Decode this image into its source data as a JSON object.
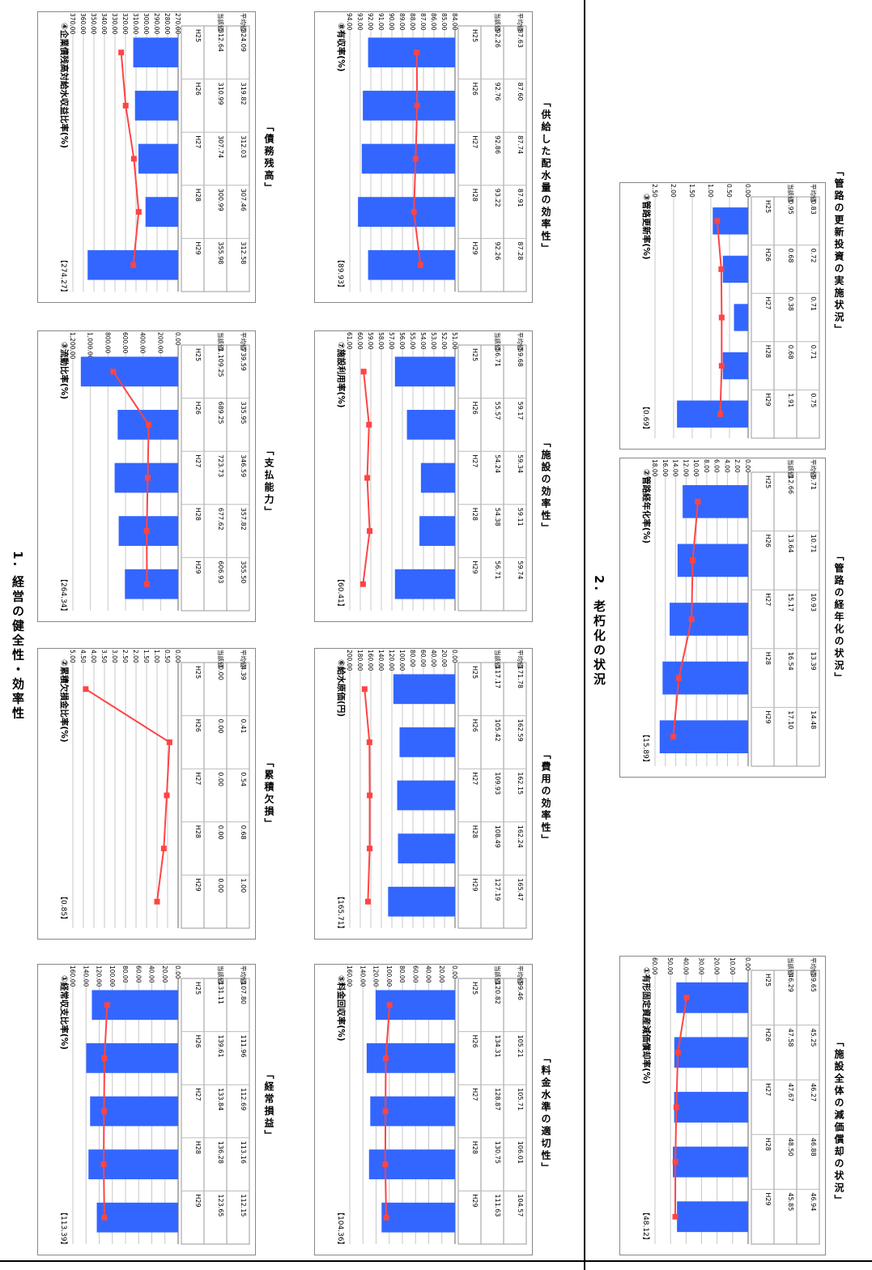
{
  "sections": {
    "s1_title": "1. 経営の健全性・効率性",
    "s2_title": "2. 老朽化の状況"
  },
  "table_row_labels": [
    "当該値",
    "平均値"
  ],
  "colors": {
    "bar": "#3366ff",
    "line": "#ff4444",
    "grid": "#c8c8c8"
  },
  "captions": {
    "c1": "「経常損益」",
    "c2": "「累積欠損」",
    "c3": "「支払能力」",
    "c4": "「債務残高」",
    "c5": "「料金水準の適切性」",
    "c6": "「費用の効率性」",
    "c7": "「施設の効率性」",
    "c8": "「供給した配水量の効率性」",
    "c9": "「施設全体の減価償却の状況」",
    "c10": "「管路の経年化の状況」",
    "c11": "「管路の更新投資の実施状況」"
  },
  "chart_data": [
    {
      "id": "c1",
      "type": "bar+line",
      "title": "①経常収支比率(%)",
      "ref": "【113.39】",
      "categories": [
        "H25",
        "H26",
        "H27",
        "H28",
        "H29"
      ],
      "ticks": [
        "0.00",
        "20.00",
        "40.00",
        "60.00",
        "80.00",
        "100.00",
        "120.00",
        "140.00",
        "160.00"
      ],
      "ylim": [
        0,
        160
      ],
      "series": [
        {
          "name": "当該値",
          "kind": "bar",
          "values": [
            131.11,
            139.61,
            133.84,
            136.28,
            123.65
          ],
          "labels": [
            "131.11",
            "139.61",
            "133.84",
            "136.28",
            "123.65"
          ]
        },
        {
          "name": "平均値",
          "kind": "line",
          "values": [
            107.8,
            111.96,
            112.69,
            113.16,
            112.15
          ],
          "labels": [
            "107.80",
            "111.96",
            "112.69",
            "113.16",
            "112.15"
          ]
        }
      ]
    },
    {
      "id": "c2",
      "type": "bar+line",
      "title": "②累積欠損金比率(%)",
      "ref": "【0.85】",
      "categories": [
        "H25",
        "H26",
        "H27",
        "H28",
        "H29"
      ],
      "ticks": [
        "0.00",
        "0.50",
        "1.00",
        "1.50",
        "2.00",
        "2.50",
        "3.00",
        "3.50",
        "4.00",
        "4.50",
        "5.00"
      ],
      "ylim": [
        0,
        5
      ],
      "series": [
        {
          "name": "当該値",
          "kind": "bar",
          "values": [
            0,
            0,
            0,
            0,
            0
          ],
          "labels": [
            "0.00",
            "0.00",
            "0.00",
            "0.00",
            "0.00"
          ]
        },
        {
          "name": "平均値",
          "kind": "line",
          "values": [
            4.39,
            0.41,
            0.54,
            0.68,
            1.0
          ],
          "labels": [
            "4.39",
            "0.41",
            "0.54",
            "0.68",
            "1.00"
          ]
        }
      ]
    },
    {
      "id": "c3",
      "type": "bar+line",
      "title": "③流動比率(%)",
      "ref": "【264.34】",
      "categories": [
        "H25",
        "H26",
        "H27",
        "H28",
        "H29"
      ],
      "ticks": [
        "0.00",
        "200.00",
        "400.00",
        "600.00",
        "800.00",
        "1,000.00",
        "1,200.00"
      ],
      "ylim": [
        0,
        1200
      ],
      "series": [
        {
          "name": "当該値",
          "kind": "bar",
          "values": [
            1109.25,
            689.25,
            723.73,
            677.62,
            606.93
          ],
          "labels": [
            "1,109.25",
            "689.25",
            "723.73",
            "677.62",
            "606.93"
          ]
        },
        {
          "name": "平均値",
          "kind": "line",
          "values": [
            739.59,
            335.95,
            346.59,
            357.82,
            355.5
          ],
          "labels": [
            "739.59",
            "335.95",
            "346.59",
            "357.82",
            "355.50"
          ]
        }
      ]
    },
    {
      "id": "c4",
      "type": "bar+line",
      "title": "④企業債残高対給水収益比率(%)",
      "ref": "【274.27】",
      "categories": [
        "H25",
        "H26",
        "H27",
        "H28",
        "H29"
      ],
      "ticks": [
        "270.00",
        "280.00",
        "290.00",
        "300.00",
        "310.00",
        "320.00",
        "330.00",
        "340.00",
        "350.00",
        "360.00",
        "370.00"
      ],
      "ylim": [
        270,
        370
      ],
      "series": [
        {
          "name": "当該値",
          "kind": "bar",
          "values": [
            312.64,
            310.99,
            307.74,
            300.99,
            355.98
          ],
          "labels": [
            "312.64",
            "310.99",
            "307.74",
            "300.99",
            "355.98"
          ]
        },
        {
          "name": "平均値",
          "kind": "line",
          "values": [
            324.09,
            319.82,
            312.03,
            307.46,
            312.58
          ],
          "labels": [
            "324.09",
            "319.82",
            "312.03",
            "307.46",
            "312.58"
          ]
        }
      ]
    },
    {
      "id": "c5",
      "type": "bar+line",
      "title": "⑤料金回収率(%)",
      "ref": "【104.36】",
      "categories": [
        "H25",
        "H26",
        "H27",
        "H28",
        "H29"
      ],
      "ticks": [
        "0.00",
        "20.00",
        "40.00",
        "60.00",
        "80.00",
        "100.00",
        "120.00",
        "140.00",
        "160.00"
      ],
      "ylim": [
        0,
        160
      ],
      "series": [
        {
          "name": "当該値",
          "kind": "bar",
          "values": [
            120.82,
            134.31,
            128.87,
            130.75,
            111.63
          ],
          "labels": [
            "120.82",
            "134.31",
            "128.87",
            "130.75",
            "111.63"
          ]
        },
        {
          "name": "平均値",
          "kind": "line",
          "values": [
            99.46,
            105.21,
            105.71,
            106.01,
            104.57
          ],
          "labels": [
            "99.46",
            "105.21",
            "105.71",
            "106.01",
            "104.57"
          ]
        }
      ]
    },
    {
      "id": "c6",
      "type": "bar+line",
      "title": "⑥給水原価(円)",
      "ref": "【165.71】",
      "categories": [
        "H25",
        "H26",
        "H27",
        "H28",
        "H29"
      ],
      "ticks": [
        "0.00",
        "20.00",
        "40.00",
        "60.00",
        "80.00",
        "100.00",
        "120.00",
        "140.00",
        "160.00",
        "180.00",
        "200.00"
      ],
      "ylim": [
        0,
        200
      ],
      "series": [
        {
          "name": "当該値",
          "kind": "bar",
          "values": [
            117.17,
            105.42,
            109.93,
            108.49,
            127.19
          ],
          "labels": [
            "117.17",
            "105.42",
            "109.93",
            "108.49",
            "127.19"
          ]
        },
        {
          "name": "平均値",
          "kind": "line",
          "values": [
            171.78,
            162.59,
            162.15,
            162.24,
            165.47
          ],
          "labels": [
            "171.78",
            "162.59",
            "162.15",
            "162.24",
            "165.47"
          ]
        }
      ]
    },
    {
      "id": "c7",
      "type": "bar+line",
      "title": "⑦施設利用率(%)",
      "ref": "【60.41】",
      "categories": [
        "H25",
        "H26",
        "H27",
        "H28",
        "H29"
      ],
      "ticks": [
        "51.00",
        "52.00",
        "53.00",
        "54.00",
        "55.00",
        "56.00",
        "57.00",
        "58.00",
        "59.00",
        "60.00",
        "61.00"
      ],
      "ylim": [
        51,
        61
      ],
      "series": [
        {
          "name": "当該値",
          "kind": "bar",
          "values": [
            56.71,
            55.57,
            54.24,
            54.38,
            56.71
          ],
          "labels": [
            "56.71",
            "55.57",
            "54.24",
            "54.38",
            "56.71"
          ]
        },
        {
          "name": "平均値",
          "kind": "line",
          "values": [
            59.68,
            59.17,
            59.34,
            59.11,
            59.74
          ],
          "labels": [
            "59.68",
            "59.17",
            "59.34",
            "59.11",
            "59.74"
          ]
        }
      ]
    },
    {
      "id": "c8",
      "type": "bar+line",
      "title": "⑧有収率(%)",
      "ref": "【89.93】",
      "categories": [
        "H25",
        "H26",
        "H27",
        "H28",
        "H29"
      ],
      "ticks": [
        "84.00",
        "85.00",
        "86.00",
        "87.00",
        "88.00",
        "89.00",
        "90.00",
        "91.00",
        "92.00",
        "93.00",
        "94.00"
      ],
      "ylim": [
        84,
        94
      ],
      "series": [
        {
          "name": "当該値",
          "kind": "bar",
          "values": [
            92.26,
            92.76,
            92.86,
            93.22,
            92.26
          ],
          "labels": [
            "92.26",
            "92.76",
            "92.86",
            "93.22",
            "92.26"
          ]
        },
        {
          "name": "平均値",
          "kind": "line",
          "values": [
            87.63,
            87.6,
            87.74,
            87.91,
            87.28
          ],
          "labels": [
            "87.63",
            "87.60",
            "87.74",
            "87.91",
            "87.28"
          ]
        }
      ]
    },
    {
      "id": "c9",
      "type": "bar+line",
      "title": "①有形固定資産減価償却率(%)",
      "ref": "【48.12】",
      "categories": [
        "H25",
        "H26",
        "H27",
        "H28",
        "H29"
      ],
      "ticks": [
        "0.00",
        "10.00",
        "20.00",
        "30.00",
        "40.00",
        "50.00",
        "60.00"
      ],
      "ylim": [
        0,
        60
      ],
      "series": [
        {
          "name": "当該値",
          "kind": "bar",
          "values": [
            46.29,
            47.58,
            47.67,
            48.5,
            45.85
          ],
          "labels": [
            "46.29",
            "47.58",
            "47.67",
            "48.50",
            "45.85"
          ]
        },
        {
          "name": "平均値",
          "kind": "line",
          "values": [
            39.65,
            45.25,
            46.27,
            46.88,
            46.94
          ],
          "labels": [
            "39.65",
            "45.25",
            "46.27",
            "46.88",
            "46.94"
          ]
        }
      ]
    },
    {
      "id": "c10",
      "type": "bar+line",
      "title": "②管路経年化率(%)",
      "ref": "【15.89】",
      "categories": [
        "H25",
        "H26",
        "H27",
        "H28",
        "H29"
      ],
      "ticks": [
        "0.00",
        "2.00",
        "4.00",
        "6.00",
        "8.00",
        "10.00",
        "12.00",
        "14.00",
        "16.00",
        "18.00"
      ],
      "ylim": [
        0,
        18
      ],
      "series": [
        {
          "name": "当該値",
          "kind": "bar",
          "values": [
            12.66,
            13.64,
            15.17,
            16.54,
            17.1
          ],
          "labels": [
            "12.66",
            "13.64",
            "15.17",
            "16.54",
            "17.10"
          ]
        },
        {
          "name": "平均値",
          "kind": "line",
          "values": [
            9.71,
            10.71,
            10.93,
            13.39,
            14.48
          ],
          "labels": [
            "9.71",
            "10.71",
            "10.93",
            "13.39",
            "14.48"
          ]
        }
      ]
    },
    {
      "id": "c11",
      "type": "bar+line",
      "title": "③管路更新率(%)",
      "ref": "【0.69】",
      "categories": [
        "H25",
        "H26",
        "H27",
        "H28",
        "H29"
      ],
      "ticks": [
        "0.00",
        "0.50",
        "1.00",
        "1.50",
        "2.00",
        "2.50"
      ],
      "ylim": [
        0,
        2.5
      ],
      "series": [
        {
          "name": "当該値",
          "kind": "bar",
          "values": [
            0.95,
            0.68,
            0.38,
            0.68,
            1.91
          ],
          "labels": [
            "0.95",
            "0.68",
            "0.38",
            "0.68",
            "1.91"
          ]
        },
        {
          "name": "平均値",
          "kind": "line",
          "values": [
            0.83,
            0.72,
            0.71,
            0.71,
            0.75
          ],
          "labels": [
            "0.83",
            "0.72",
            "0.71",
            "0.71",
            "0.75"
          ]
        }
      ]
    }
  ]
}
